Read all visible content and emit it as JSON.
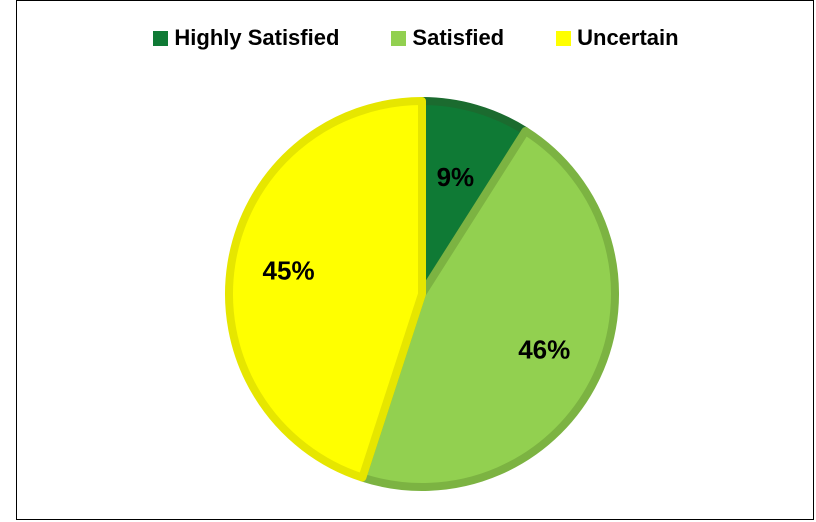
{
  "chart_data": {
    "type": "pie",
    "categories": [
      "Highly Satisfied",
      "Satisfied",
      "Uncertain"
    ],
    "values": [
      9,
      46,
      45
    ],
    "labels": [
      "9%",
      "46%",
      "45%"
    ],
    "colors": [
      "#0f7a35",
      "#92d050",
      "#ffff00"
    ],
    "border_colors": [
      "#1b6b2f",
      "#7cb342",
      "#e6e600"
    ],
    "legend_position": "top",
    "start_angle": "top, clockwise"
  }
}
